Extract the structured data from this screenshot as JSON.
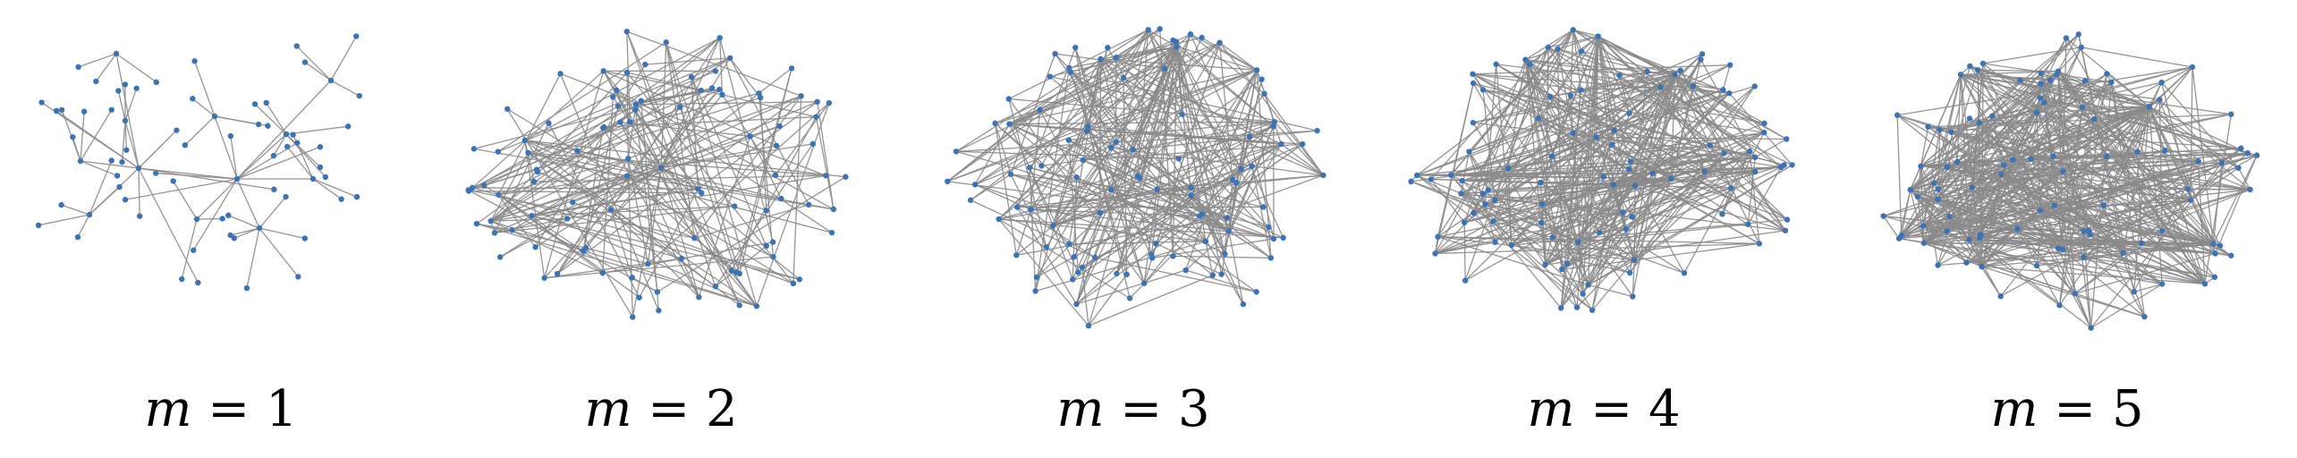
{
  "figure": {
    "panels": [
      {
        "m": 1,
        "var": "m",
        "eq": "=",
        "value": "1"
      },
      {
        "m": 2,
        "var": "m",
        "eq": "=",
        "value": "2"
      },
      {
        "m": 3,
        "var": "m",
        "eq": "=",
        "value": "3"
      },
      {
        "m": 4,
        "var": "m",
        "eq": "=",
        "value": "4"
      },
      {
        "m": 5,
        "var": "m",
        "eq": "=",
        "value": "5"
      }
    ],
    "colors": {
      "node": "#3b73b9",
      "edge": "#8a8a8a",
      "text": "#000000",
      "background": "#ffffff"
    }
  }
}
